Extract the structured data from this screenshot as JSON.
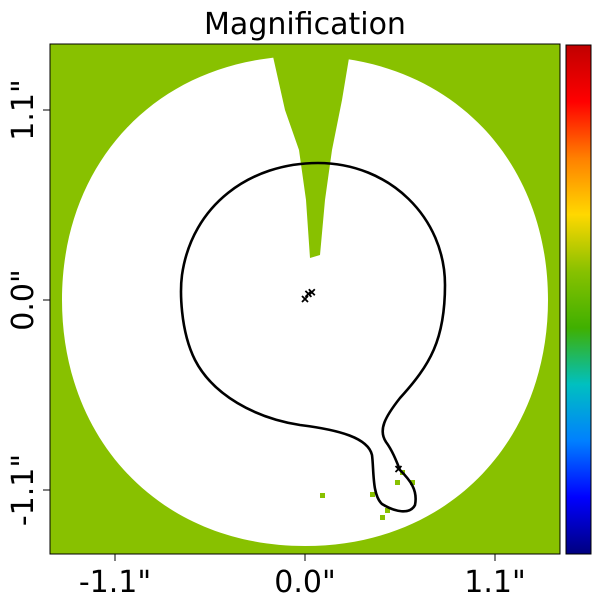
{
  "chart_data": {
    "type": "heatmap",
    "title": "Magnification",
    "x_tick_labels": [
      "-1.1\"",
      "0.0\"",
      "1.1\""
    ],
    "y_tick_labels": [
      "1.1\"",
      "0.0\"",
      "-1.1\""
    ],
    "x_ticks": [
      -1.1,
      0.0,
      1.1
    ],
    "y_ticks": [
      1.1,
      0.0,
      -1.1
    ],
    "xlim": [
      -1.5,
      1.5
    ],
    "ylim": [
      -1.5,
      1.5
    ],
    "fill_color": "#88c100",
    "background_color": "#ffffff",
    "colormap": [
      "#00007f",
      "#0000ff",
      "#0080ff",
      "#00c0c0",
      "#40b000",
      "#88c100",
      "#ffd800",
      "#ff8000",
      "#ff0000",
      "#c00000"
    ],
    "colorbar_position": "right",
    "critical_curve_color": "#000000",
    "source_markers": [
      [
        0.0,
        0.0
      ],
      [
        0.04,
        0.04
      ],
      [
        0.02,
        0.03
      ],
      [
        0.55,
        -1.0
      ]
    ]
  }
}
